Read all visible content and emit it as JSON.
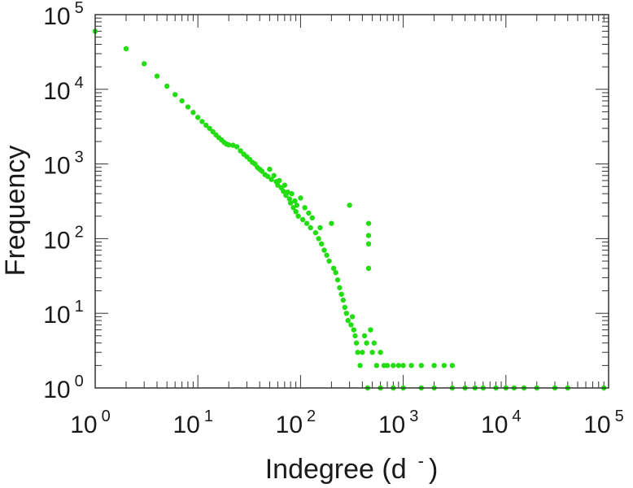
{
  "chart_data": {
    "type": "scatter",
    "title": "",
    "xlabel": "Indegree (d",
    "xlabel_super": "-",
    "xlabel_close": ")",
    "ylabel": "Frequency",
    "xscale": "log",
    "yscale": "log",
    "xlim": [
      1,
      100000
    ],
    "ylim": [
      1,
      100000
    ],
    "grid": false,
    "marker_color": "#22dd11",
    "x_ticks": [
      {
        "base": "10",
        "exp": "0"
      },
      {
        "base": "10",
        "exp": "1"
      },
      {
        "base": "10",
        "exp": "2"
      },
      {
        "base": "10",
        "exp": "3"
      },
      {
        "base": "10",
        "exp": "4"
      },
      {
        "base": "10",
        "exp": "5"
      }
    ],
    "y_ticks": [
      {
        "base": "10",
        "exp": "0"
      },
      {
        "base": "10",
        "exp": "1"
      },
      {
        "base": "10",
        "exp": "2"
      },
      {
        "base": "10",
        "exp": "3"
      },
      {
        "base": "10",
        "exp": "4"
      },
      {
        "base": "10",
        "exp": "5"
      }
    ],
    "points": [
      [
        1,
        60000
      ],
      [
        2,
        35000
      ],
      [
        3,
        22000
      ],
      [
        4,
        15000
      ],
      [
        5,
        11000
      ],
      [
        6,
        8500
      ],
      [
        7,
        7000
      ],
      [
        8,
        5800
      ],
      [
        9,
        4900
      ],
      [
        10,
        4200
      ],
      [
        11,
        3700
      ],
      [
        12,
        3300
      ],
      [
        13,
        3000
      ],
      [
        14,
        2700
      ],
      [
        15,
        2450
      ],
      [
        16,
        2250
      ],
      [
        17,
        2100
      ],
      [
        18,
        1950
      ],
      [
        19,
        1850
      ],
      [
        20,
        1800
      ],
      [
        22,
        1780
      ],
      [
        24,
        1700
      ],
      [
        26,
        1500
      ],
      [
        28,
        1350
      ],
      [
        30,
        1250
      ],
      [
        32,
        1150
      ],
      [
        34,
        1050
      ],
      [
        36,
        1000
      ],
      [
        38,
        900
      ],
      [
        40,
        850
      ],
      [
        42,
        800
      ],
      [
        45,
        720
      ],
      [
        48,
        680
      ],
      [
        50,
        850
      ],
      [
        52,
        620
      ],
      [
        55,
        700
      ],
      [
        58,
        580
      ],
      [
        60,
        520
      ],
      [
        62,
        600
      ],
      [
        65,
        480
      ],
      [
        68,
        430
      ],
      [
        70,
        520
      ],
      [
        72,
        380
      ],
      [
        75,
        420
      ],
      [
        78,
        340
      ],
      [
        80,
        300
      ],
      [
        82,
        400
      ],
      [
        85,
        260
      ],
      [
        88,
        320
      ],
      [
        90,
        230
      ],
      [
        92,
        280
      ],
      [
        95,
        200
      ],
      [
        100,
        350
      ],
      [
        105,
        180
      ],
      [
        110,
        260
      ],
      [
        115,
        160
      ],
      [
        120,
        220
      ],
      [
        125,
        140
      ],
      [
        130,
        190
      ],
      [
        140,
        120
      ],
      [
        150,
        100
      ],
      [
        155,
        140
      ],
      [
        160,
        85
      ],
      [
        170,
        70
      ],
      [
        180,
        60
      ],
      [
        190,
        50
      ],
      [
        200,
        160
      ],
      [
        210,
        40
      ],
      [
        220,
        35
      ],
      [
        230,
        28
      ],
      [
        240,
        22
      ],
      [
        250,
        18
      ],
      [
        260,
        15
      ],
      [
        270,
        12
      ],
      [
        280,
        10
      ],
      [
        290,
        8
      ],
      [
        300,
        280
      ],
      [
        310,
        7
      ],
      [
        320,
        9
      ],
      [
        330,
        6
      ],
      [
        340,
        5
      ],
      [
        350,
        4
      ],
      [
        360,
        3
      ],
      [
        380,
        2
      ],
      [
        400,
        3
      ],
      [
        420,
        5
      ],
      [
        440,
        4
      ],
      [
        460,
        160
      ],
      [
        460,
        110
      ],
      [
        460,
        85
      ],
      [
        460,
        40
      ],
      [
        480,
        6
      ],
      [
        500,
        3
      ],
      [
        520,
        4
      ],
      [
        550,
        2
      ],
      [
        600,
        3
      ],
      [
        650,
        2
      ],
      [
        700,
        2
      ],
      [
        800,
        2
      ],
      [
        900,
        2
      ],
      [
        1000,
        2
      ],
      [
        1200,
        2
      ],
      [
        1500,
        2
      ],
      [
        2000,
        2
      ],
      [
        2500,
        2
      ],
      [
        3000,
        2
      ],
      [
        450,
        1
      ],
      [
        600,
        1
      ],
      [
        800,
        1
      ],
      [
        1000,
        1
      ],
      [
        1500,
        1
      ],
      [
        2000,
        1
      ],
      [
        3000,
        1
      ],
      [
        4000,
        1
      ],
      [
        5000,
        1
      ],
      [
        6000,
        1
      ],
      [
        8000,
        1
      ],
      [
        10000,
        1
      ],
      [
        12000,
        1
      ],
      [
        15000,
        1
      ],
      [
        20000,
        1
      ],
      [
        30000,
        1
      ],
      [
        40000,
        1
      ],
      [
        90000,
        1
      ]
    ]
  }
}
